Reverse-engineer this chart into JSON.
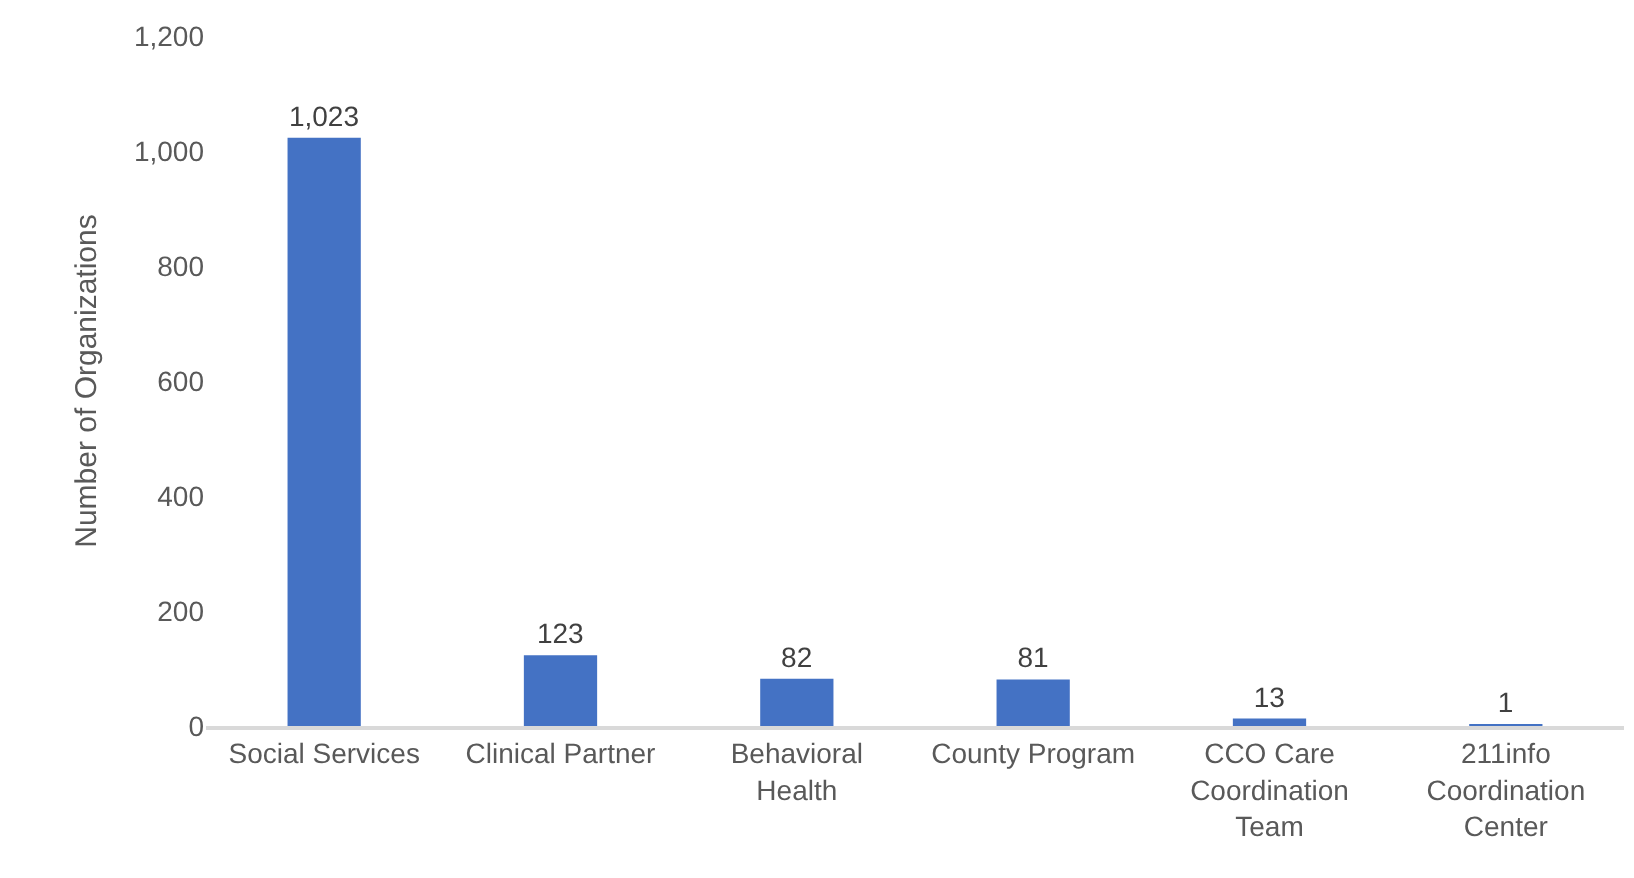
{
  "chart_data": {
    "type": "bar",
    "ylabel": "Number of Organizations",
    "categories": [
      "Social Services",
      "Clinical Partner",
      "Behavioral Health",
      "County Program",
      "CCO Care Coordination Team",
      "211info Coordination Center"
    ],
    "values": [
      1023,
      123,
      82,
      81,
      13,
      1
    ],
    "color": "#4472c4",
    "value_labels": [
      "1,023",
      "123",
      "82",
      "81",
      "13",
      "1"
    ],
    "ylim": [
      0,
      1200
    ],
    "yticks": [
      0,
      200,
      400,
      600,
      800,
      {
        "value": 1000,
        "label": "1,000"
      },
      {
        "value": 1200,
        "label": "1,200"
      }
    ]
  }
}
